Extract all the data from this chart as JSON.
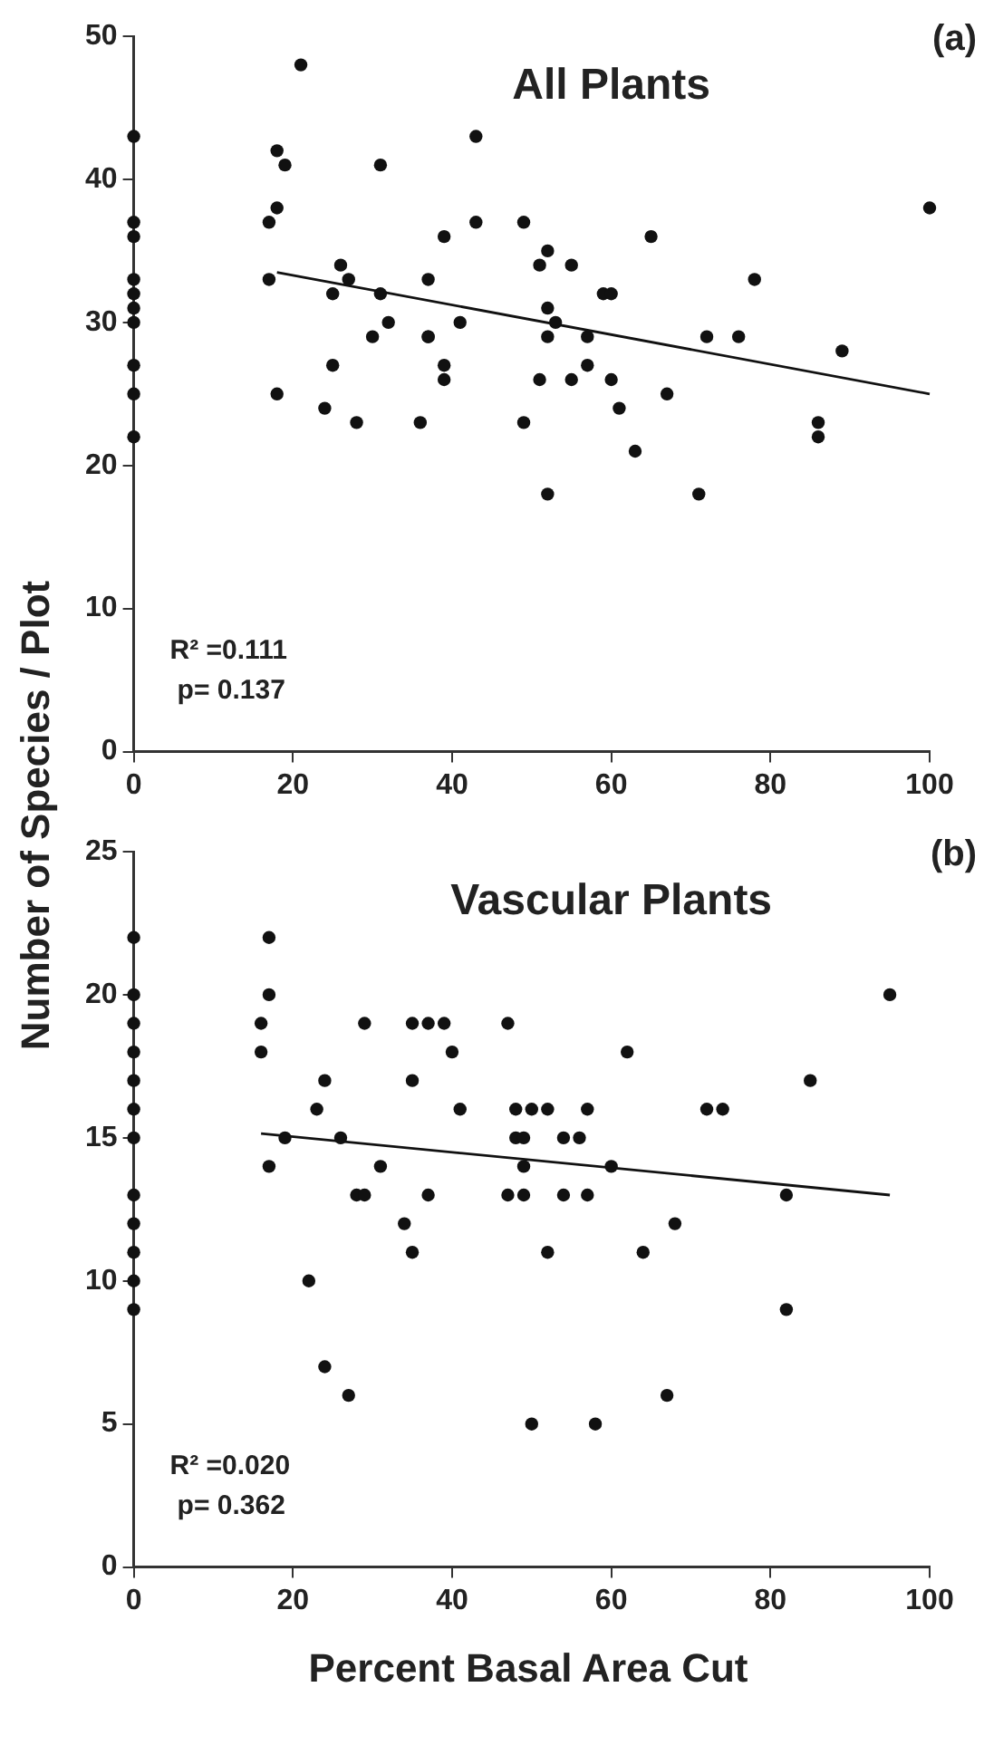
{
  "chart_data": [
    {
      "type": "scatter",
      "title": "All Plants",
      "ylabel": "Number of Species / Plot",
      "annotations": [
        "(a)",
        "R² =0.111",
        "p= 0.137"
      ],
      "grid": false,
      "legend": false,
      "xlim": [
        0,
        100
      ],
      "xticks": [
        0,
        20,
        40,
        60,
        80,
        100
      ],
      "ylim": [
        0,
        50
      ],
      "yticks": [
        0,
        10,
        20,
        30,
        40,
        50
      ],
      "series": [
        {
          "marker": "circle",
          "color": "#111111",
          "x": [
            0,
            0,
            0,
            0,
            0,
            0,
            0,
            0,
            0,
            0,
            21,
            18,
            19,
            18,
            17,
            17,
            43,
            31,
            43,
            49,
            39,
            26,
            27,
            25,
            31,
            37,
            52,
            51,
            32,
            41,
            52,
            52,
            30,
            37,
            37,
            25,
            39,
            39,
            51,
            18,
            24,
            28,
            36,
            49,
            52,
            55,
            65,
            59,
            60,
            78,
            53,
            57,
            72,
            76,
            89,
            100,
            55,
            60,
            57,
            67,
            61,
            63,
            86,
            86,
            71
          ],
          "values": [
            43,
            37,
            36,
            33,
            32,
            31,
            30,
            27,
            25,
            22,
            48,
            42,
            41,
            38,
            37,
            33,
            43,
            41,
            37,
            37,
            36,
            34,
            33,
            32,
            32,
            33,
            35,
            34,
            30,
            30,
            31,
            29,
            29,
            29,
            29,
            27,
            27,
            26,
            26,
            25,
            24,
            23,
            23,
            23,
            18,
            34,
            36,
            32,
            32,
            33,
            30,
            29,
            29,
            29,
            28,
            38,
            26,
            26,
            27,
            25,
            24,
            21,
            23,
            22,
            18
          ]
        },
        {
          "type": "line",
          "marker": "none",
          "color": "#111111",
          "x": [
            18,
            100
          ],
          "values": [
            33.5,
            25
          ]
        }
      ]
    },
    {
      "type": "scatter",
      "title": "Vascular Plants",
      "xlabel": "Percent Basal Area Cut",
      "annotations": [
        "(b)",
        "R² =0.020",
        "p= 0.362"
      ],
      "grid": false,
      "legend": false,
      "xlim": [
        0,
        100
      ],
      "xticks": [
        0,
        20,
        40,
        60,
        80,
        100
      ],
      "ylim": [
        0,
        25
      ],
      "yticks": [
        0,
        5,
        10,
        15,
        20,
        25
      ],
      "series": [
        {
          "marker": "circle",
          "color": "#111111",
          "x": [
            0,
            0,
            0,
            0,
            0,
            0,
            0,
            0,
            0,
            0,
            0,
            0,
            17,
            17,
            16,
            16,
            29,
            35,
            37,
            39,
            47,
            40,
            24,
            35,
            23,
            41,
            48,
            50,
            52,
            19,
            26,
            48,
            49,
            17,
            31,
            49,
            28,
            29,
            37,
            47,
            49,
            34,
            35,
            52,
            22,
            24,
            27,
            50,
            95,
            62,
            85,
            57,
            72,
            74,
            54,
            56,
            60,
            54,
            57,
            82,
            68,
            64,
            82,
            67,
            58
          ],
          "values": [
            22,
            20,
            19,
            18,
            17,
            16,
            15,
            13,
            12,
            11,
            10,
            9,
            22,
            20,
            19,
            18,
            19,
            19,
            19,
            19,
            19,
            18,
            17,
            17,
            16,
            16,
            16,
            16,
            16,
            15,
            15,
            15,
            15,
            14,
            14,
            14,
            13,
            13,
            13,
            13,
            13,
            12,
            11,
            11,
            10,
            7,
            6,
            5,
            20,
            18,
            17,
            16,
            16,
            16,
            15,
            15,
            14,
            13,
            13,
            13,
            12,
            11,
            9,
            6,
            5
          ]
        },
        {
          "type": "line",
          "marker": "none",
          "color": "#111111",
          "x": [
            16,
            95
          ],
          "values": [
            15.15,
            13.0
          ]
        }
      ]
    }
  ]
}
